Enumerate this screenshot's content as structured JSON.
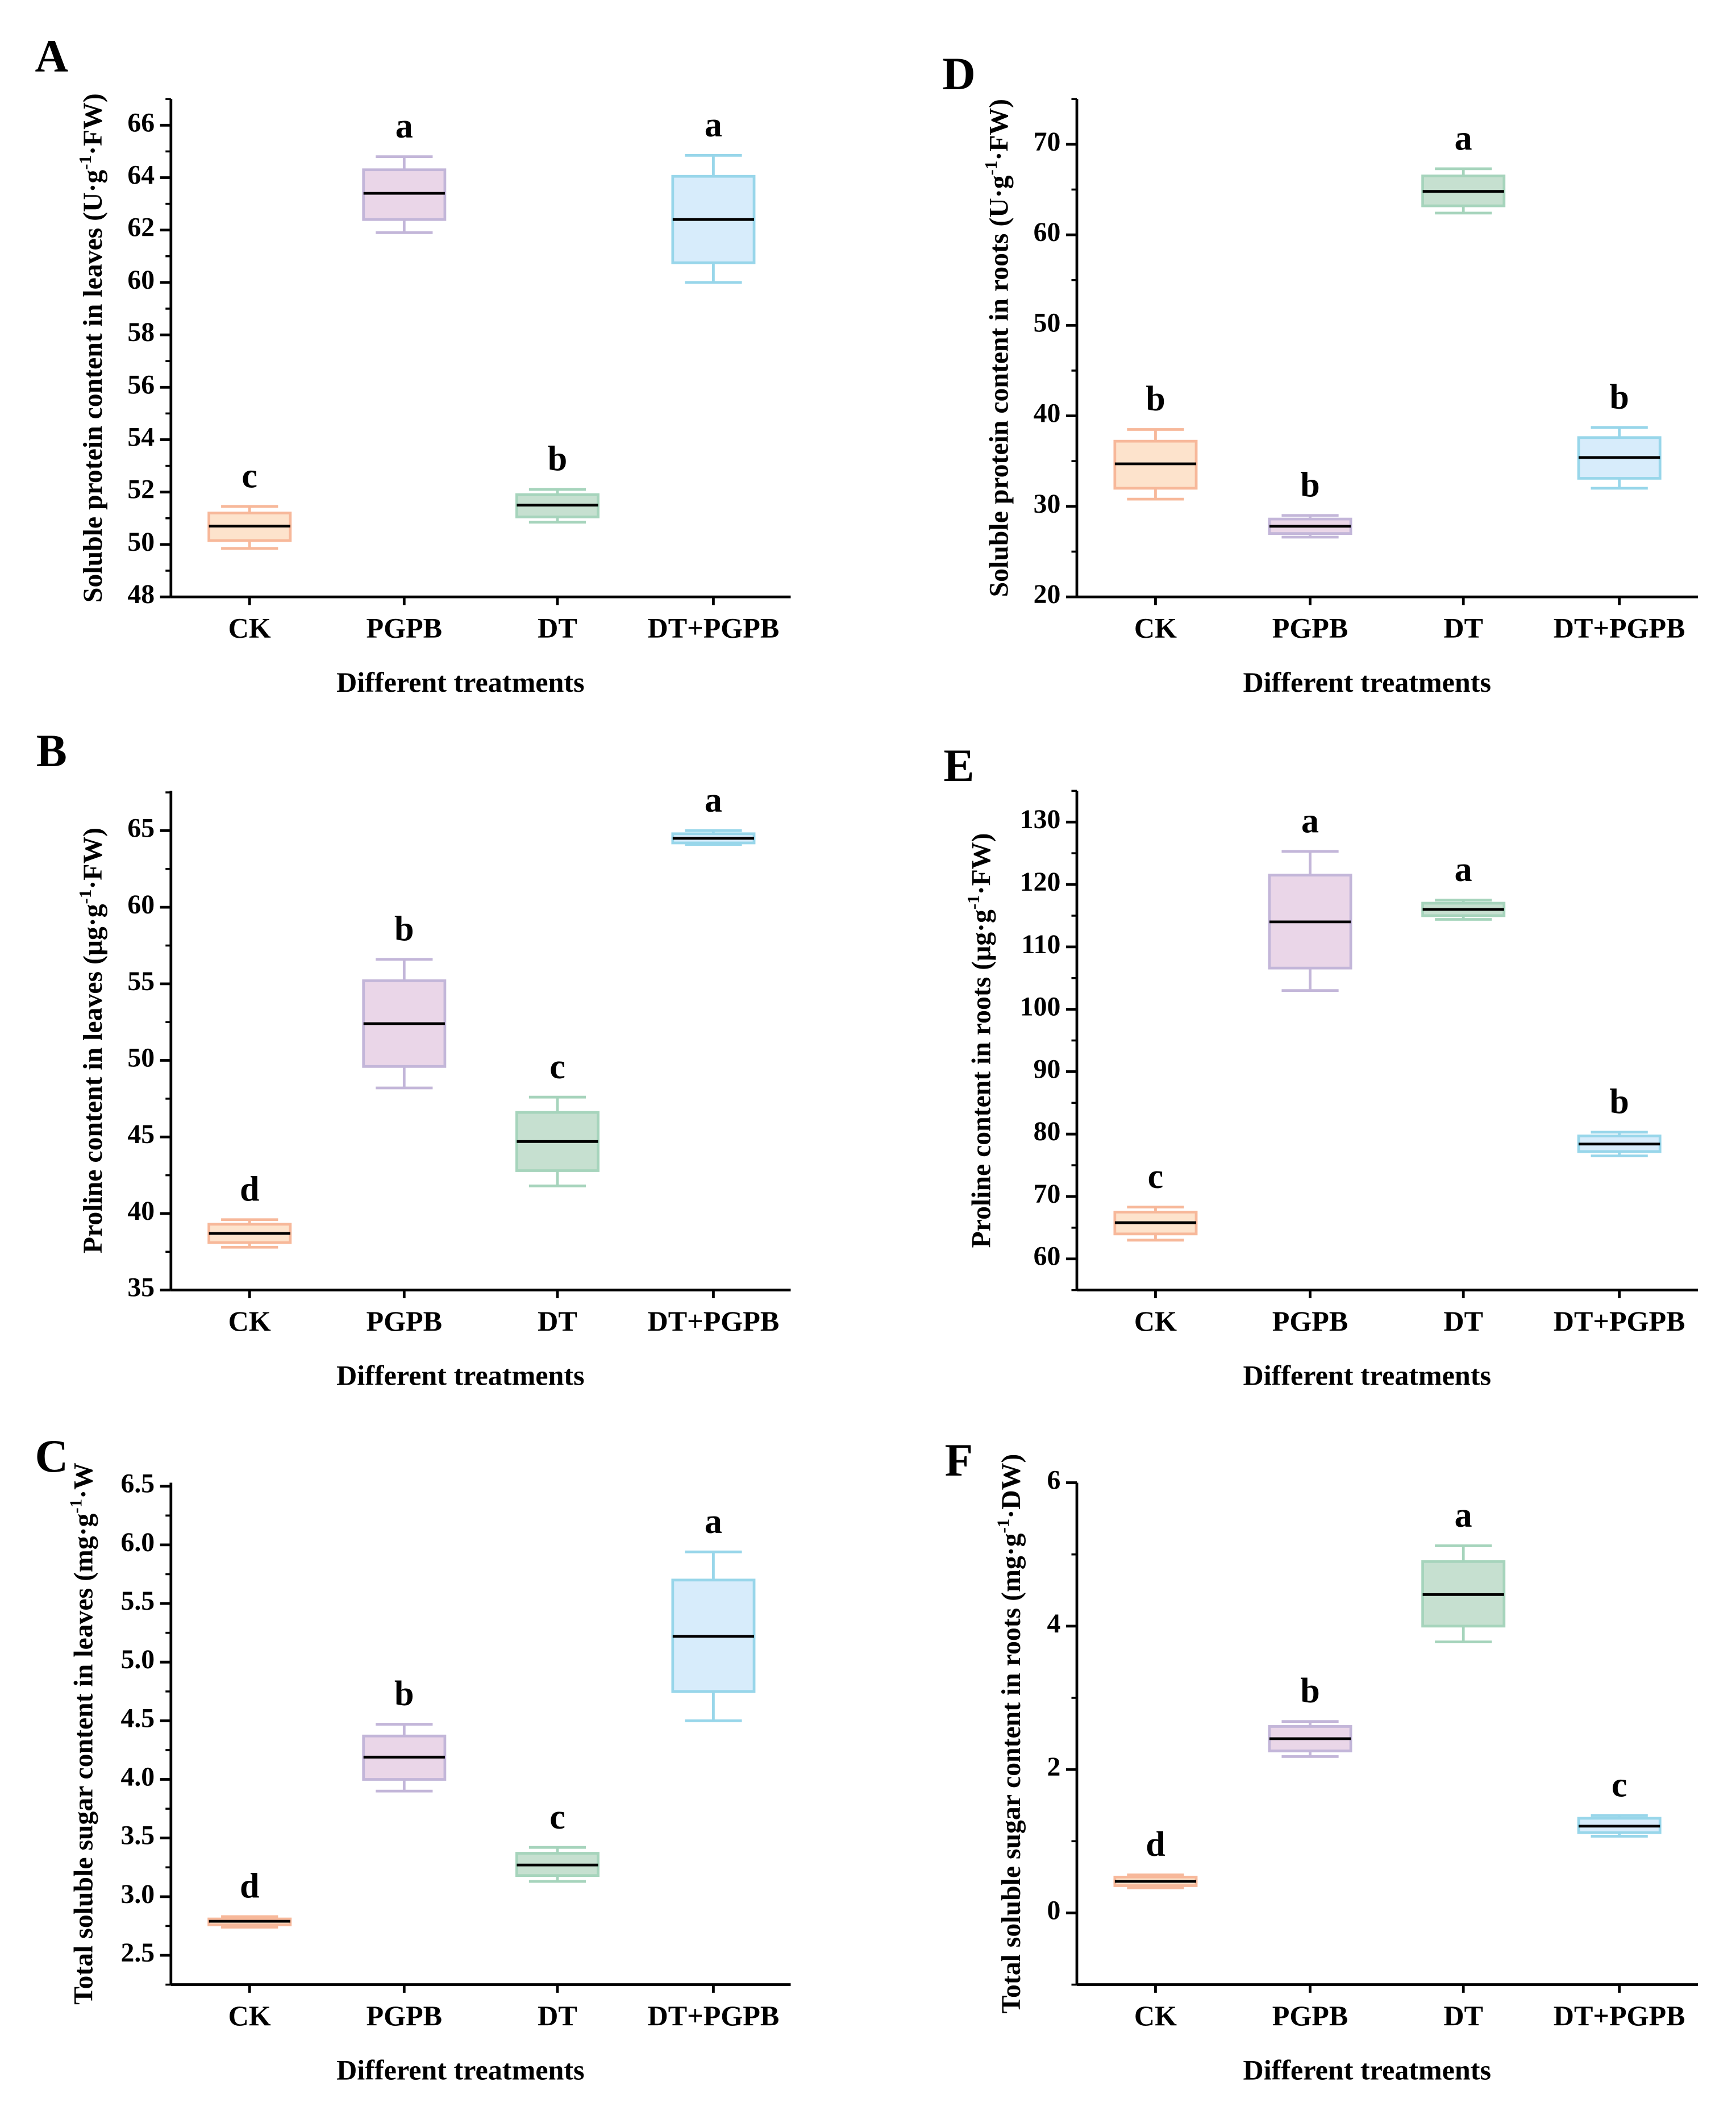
{
  "chart_data": [
    {
      "type": "box",
      "panel": "A",
      "ylabel": {
        "prefix": "Soluble protein content in leaves (U·g",
        "sup": "-1",
        "suffix": "·FW)"
      },
      "xlabel": "Different treatments",
      "categories": [
        "CK",
        "PGPB",
        "DT",
        "DT+PGPB"
      ],
      "ylim": [
        48,
        67
      ],
      "yticks": [
        48,
        50,
        52,
        54,
        56,
        58,
        60,
        62,
        64,
        66
      ],
      "minor_step": 1,
      "boxes": [
        {
          "min": 49.85,
          "q1": 50.15,
          "median": 50.7,
          "q3": 51.2,
          "max": 51.45,
          "letter": "c"
        },
        {
          "min": 61.9,
          "q1": 62.4,
          "median": 63.4,
          "q3": 64.3,
          "max": 64.8,
          "letter": "a"
        },
        {
          "min": 50.85,
          "q1": 51.05,
          "median": 51.5,
          "q3": 51.9,
          "max": 52.1,
          "letter": "b"
        },
        {
          "min": 60.0,
          "q1": 60.75,
          "median": 62.4,
          "q3": 64.05,
          "max": 64.85,
          "letter": "a"
        }
      ]
    },
    {
      "type": "box",
      "panel": "B",
      "ylabel": {
        "prefix": "Proline content in leaves (μg·g",
        "sup": "-1",
        "suffix": "·FW)"
      },
      "xlabel": "Different treatments",
      "categories": [
        "CK",
        "PGPB",
        "DT",
        "DT+PGPB"
      ],
      "ylim": [
        35,
        67.6
      ],
      "yticks": [
        35,
        40,
        45,
        50,
        55,
        60,
        65
      ],
      "minor_step": 2.5,
      "boxes": [
        {
          "min": 37.8,
          "q1": 38.1,
          "median": 38.7,
          "q3": 39.3,
          "max": 39.6,
          "letter": "d"
        },
        {
          "min": 48.2,
          "q1": 49.6,
          "median": 52.4,
          "q3": 55.2,
          "max": 56.6,
          "letter": "b"
        },
        {
          "min": 41.8,
          "q1": 42.8,
          "median": 44.7,
          "q3": 46.6,
          "max": 47.6,
          "letter": "c"
        },
        {
          "min": 64.1,
          "q1": 64.2,
          "median": 64.5,
          "q3": 64.8,
          "max": 65.0,
          "letter": "a"
        }
      ]
    },
    {
      "type": "box",
      "panel": "C",
      "ylabel": {
        "prefix": "Total soluble sugar content in leaves (mg·g",
        "sup": "-1",
        "suffix": "·W"
      },
      "xlabel": "Different treatments",
      "categories": [
        "CK",
        "PGPB",
        "DT",
        "DT+PGPB"
      ],
      "ylim": [
        2.25,
        6.53
      ],
      "yticks": [
        2.5,
        3.0,
        3.5,
        4.0,
        4.5,
        5.0,
        5.5,
        6.0,
        6.5
      ],
      "minor_step": 0.25,
      "boxes": [
        {
          "min": 2.74,
          "q1": 2.76,
          "median": 2.79,
          "q3": 2.81,
          "max": 2.83,
          "letter": "d"
        },
        {
          "min": 3.9,
          "q1": 4.0,
          "median": 4.19,
          "q3": 4.37,
          "max": 4.47,
          "letter": "b"
        },
        {
          "min": 3.13,
          "q1": 3.18,
          "median": 3.27,
          "q3": 3.37,
          "max": 3.42,
          "letter": "c"
        },
        {
          "min": 4.5,
          "q1": 4.75,
          "median": 5.22,
          "q3": 5.7,
          "max": 5.94,
          "letter": "a"
        }
      ]
    },
    {
      "type": "box",
      "panel": "D",
      "ylabel": {
        "prefix": "Soluble protein content in roots (U·g",
        "sup": "-1",
        "suffix": "·FW)"
      },
      "xlabel": "Different treatments",
      "categories": [
        "CK",
        "PGPB",
        "DT",
        "DT+PGPB"
      ],
      "ylim": [
        20,
        75
      ],
      "yticks": [
        20,
        30,
        40,
        50,
        60,
        70
      ],
      "minor_step": 5,
      "boxes": [
        {
          "min": 30.8,
          "q1": 32.0,
          "median": 34.7,
          "q3": 37.2,
          "max": 38.5,
          "letter": "b"
        },
        {
          "min": 26.6,
          "q1": 27.0,
          "median": 27.8,
          "q3": 28.6,
          "max": 29.0,
          "letter": "b"
        },
        {
          "min": 62.4,
          "q1": 63.2,
          "median": 64.8,
          "q3": 66.5,
          "max": 67.3,
          "letter": "a"
        },
        {
          "min": 32.0,
          "q1": 33.1,
          "median": 35.4,
          "q3": 37.6,
          "max": 38.7,
          "letter": "b"
        }
      ]
    },
    {
      "type": "box",
      "panel": "E",
      "ylabel": {
        "prefix": "Proline content in roots (μg·g",
        "sup": "-1",
        "suffix": "·FW)"
      },
      "xlabel": "Different treatments",
      "categories": [
        "CK",
        "PGPB",
        "DT",
        "DT+PGPB"
      ],
      "ylim": [
        55,
        135
      ],
      "yticks": [
        60,
        70,
        80,
        90,
        100,
        110,
        120,
        130
      ],
      "minor_step": 5,
      "boxes": [
        {
          "min": 63.0,
          "q1": 64.0,
          "median": 65.8,
          "q3": 67.5,
          "max": 68.3,
          "letter": "c"
        },
        {
          "min": 103.0,
          "q1": 106.6,
          "median": 114.0,
          "q3": 121.5,
          "max": 125.3,
          "letter": "a"
        },
        {
          "min": 114.4,
          "q1": 115.0,
          "median": 116.0,
          "q3": 117.0,
          "max": 117.5,
          "letter": "a"
        },
        {
          "min": 76.5,
          "q1": 77.2,
          "median": 78.4,
          "q3": 79.7,
          "max": 80.3,
          "letter": "b"
        }
      ]
    },
    {
      "type": "box",
      "panel": "F",
      "ylabel": {
        "prefix": "Total soluble sugar content in roots (mg·g",
        "sup": "-1",
        "suffix": "·DW)"
      },
      "xlabel": "Different treatments",
      "categories": [
        "CK",
        "PGPB",
        "DT",
        "DT+PGPB"
      ],
      "ylim": [
        -1,
        6
      ],
      "yticks": [
        0,
        2,
        4,
        6
      ],
      "minor_step": 1,
      "boxes": [
        {
          "min": 0.35,
          "q1": 0.38,
          "median": 0.44,
          "q3": 0.5,
          "max": 0.53,
          "letter": "d"
        },
        {
          "min": 2.18,
          "q1": 2.26,
          "median": 2.43,
          "q3": 2.6,
          "max": 2.67,
          "letter": "b"
        },
        {
          "min": 3.78,
          "q1": 4.0,
          "median": 4.44,
          "q3": 4.9,
          "max": 5.12,
          "letter": "a"
        },
        {
          "min": 1.07,
          "q1": 1.12,
          "median": 1.21,
          "q3": 1.32,
          "max": 1.36,
          "letter": "c"
        }
      ]
    }
  ],
  "colors": {
    "fills": [
      "#fde3cc",
      "#ead6e8",
      "#c6e0d0",
      "#d7ecfb"
    ],
    "strokes": [
      "#f7b89a",
      "#c3b6d9",
      "#a6d4bc",
      "#98d6ea"
    ],
    "median": "#000000"
  }
}
